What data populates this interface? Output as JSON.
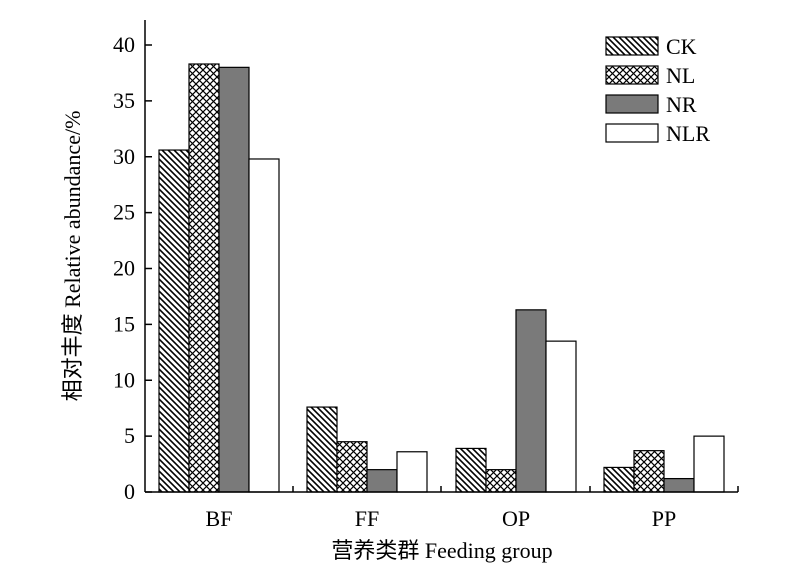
{
  "chart_data": {
    "type": "bar",
    "categories": [
      "BF",
      "FF",
      "OP",
      "PP"
    ],
    "series": [
      {
        "name": "CK",
        "pattern": "diagonal-hatch",
        "values": [
          30.6,
          7.6,
          3.9,
          2.2
        ]
      },
      {
        "name": "NL",
        "pattern": "crosshatch",
        "values": [
          38.3,
          4.5,
          2.0,
          3.7
        ]
      },
      {
        "name": "NR",
        "pattern": "solid-gray",
        "values": [
          38.0,
          2.0,
          16.3,
          1.2
        ]
      },
      {
        "name": "NLR",
        "pattern": "white",
        "values": [
          29.8,
          3.6,
          13.5,
          5.0
        ]
      }
    ],
    "xlabel": "营养类群  Feeding group",
    "ylabel": "相对丰度 Relative abundance/%",
    "ylim": [
      0,
      42
    ],
    "yticks": [
      0,
      5,
      10,
      15,
      20,
      25,
      30,
      35,
      40
    ],
    "grid": false,
    "legend_position": "top-right",
    "colors": {
      "gray": "#7a7a7a",
      "stroke": "#000000",
      "white": "#ffffff"
    }
  }
}
